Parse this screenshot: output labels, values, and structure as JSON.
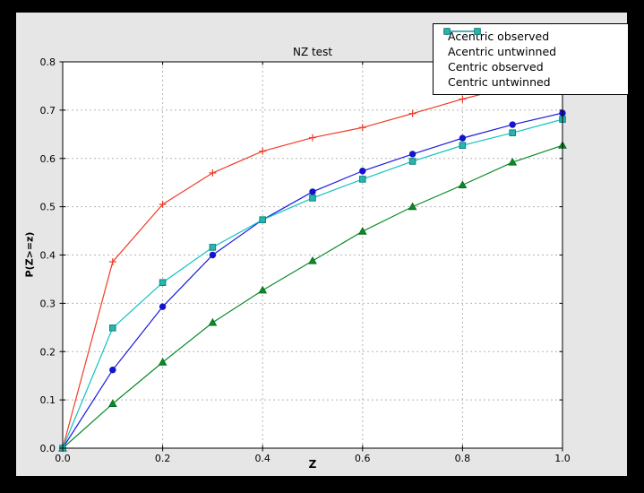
{
  "figure": {
    "kind": "matplotlib-plot-window"
  },
  "colors": {
    "page_bg": "#000000",
    "figure_bg": "#e6e6e6",
    "plot_bg": "#ffffff",
    "grid_color": "#b5b5b5",
    "spine_color": "#000000",
    "text_color": "#000000",
    "legend_bg": "#ffffff",
    "legend_border": "#000000"
  },
  "chart_data": {
    "type": "line",
    "title": "NZ test",
    "xlabel": "Z",
    "ylabel": "P(Z>=z)",
    "xlim": [
      0.0,
      1.0
    ],
    "ylim": [
      0.0,
      0.8
    ],
    "grid": true,
    "grid_style": "dashed",
    "legend_position": "upper right",
    "x_ticks": [
      0.0,
      0.2,
      0.4,
      0.6,
      0.8,
      1.0
    ],
    "x_tick_labels": [
      "0.0",
      "0.2",
      "0.4",
      "0.6",
      "0.8",
      "1.0"
    ],
    "y_ticks": [
      0.0,
      0.1,
      0.2,
      0.3,
      0.4,
      0.5,
      0.6,
      0.7,
      0.8
    ],
    "y_tick_labels": [
      "0.0",
      "0.1",
      "0.2",
      "0.3",
      "0.4",
      "0.5",
      "0.6",
      "0.7",
      "0.8"
    ],
    "x": [
      0.0,
      0.1,
      0.2,
      0.3,
      0.4,
      0.5,
      0.6,
      0.7,
      0.8,
      0.9,
      1.0
    ],
    "series": [
      {
        "name": "Acentric observed",
        "color": "#1a1ae0",
        "marker": "circle",
        "marker_fill": "#1414cc",
        "marker_edge": "#1414cc",
        "legend_marker": "none",
        "values": [
          0.0,
          0.162,
          0.293,
          0.4,
          0.473,
          0.531,
          0.574,
          0.609,
          0.642,
          0.67,
          0.694
        ]
      },
      {
        "name": "Acentric untwinned",
        "color": "#0a8a28",
        "marker": "triangle-up",
        "marker_fill": "#0a8a28",
        "marker_edge": "#06691c",
        "legend_marker": "none",
        "values": [
          0.0,
          0.092,
          0.178,
          0.26,
          0.327,
          0.388,
          0.449,
          0.5,
          0.545,
          0.592,
          0.627
        ]
      },
      {
        "name": "Centric observed",
        "color": "#f23b28",
        "marker": "plus",
        "marker_fill": "#f23b28",
        "marker_edge": "#f23b28",
        "legend_marker": "plus",
        "values": [
          0.0,
          0.386,
          0.505,
          0.57,
          0.615,
          0.643,
          0.664,
          0.693,
          0.723,
          0.749,
          0.773
        ]
      },
      {
        "name": "Centric untwinned",
        "color": "#12c2c2",
        "marker": "square",
        "marker_fill": "#2bb3ac",
        "marker_edge": "#0e8480",
        "legend_marker": "square",
        "values": [
          0.0,
          0.249,
          0.343,
          0.416,
          0.473,
          0.518,
          0.557,
          0.594,
          0.627,
          0.653,
          0.681
        ]
      }
    ]
  }
}
